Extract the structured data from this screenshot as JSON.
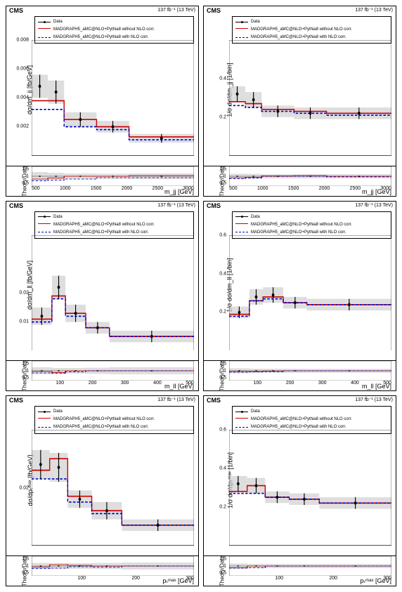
{
  "global": {
    "experiment": "CMS",
    "luminosity": "137 fb⁻¹ (13 TeV)",
    "legend_data": "Data",
    "legend_red": "MADGRAPH5_aMC@NLO+Pythia8 without NLO corr.",
    "legend_blue": "MADGRAPH5_aMC@NLO+Pythia8 with NLO corr.",
    "ratio_label": "Theory/Data",
    "colors": {
      "data": "#000000",
      "red": "#cc0000",
      "blue": "#0000cc",
      "band": "#d0d0d0",
      "band_hatch": "#b0b0b0"
    }
  },
  "panels": [
    {
      "id": "p00",
      "y_label": "dσ/dm_jj [fb/GeV]",
      "x_label": "m_jj [GeV]",
      "x_ticks": [
        "500",
        "1000",
        "1500",
        "2000",
        "2500",
        "3000"
      ],
      "y_ticks": [
        {
          "v": 1.0,
          "l": "0.008"
        },
        {
          "v": 0.75,
          "l": "0.006"
        },
        {
          "v": 0.5,
          "l": "0.004"
        },
        {
          "v": 0.25,
          "l": "0.002"
        }
      ],
      "x_bins": [
        500,
        750,
        1000,
        1500,
        2000,
        3000
      ],
      "data_points": [
        {
          "x": 625,
          "y": 0.0048,
          "ey": 0.0008
        },
        {
          "x": 875,
          "y": 0.0044,
          "ey": 0.0008
        },
        {
          "x": 1250,
          "y": 0.0025,
          "ey": 0.0005
        },
        {
          "x": 1750,
          "y": 0.002,
          "ey": 0.0004
        },
        {
          "x": 2500,
          "y": 0.0012,
          "ey": 0.0003
        }
      ],
      "red_steps": [
        0.0038,
        0.0038,
        0.0025,
        0.002,
        0.0013
      ],
      "blue_steps": [
        0.0032,
        0.0032,
        0.002,
        0.0018,
        0.0011
      ],
      "y_max": 0.008,
      "x_min": 500,
      "x_max": 3000,
      "ratio_ticks": [
        "0.5",
        "1",
        "1.5"
      ],
      "ratio_red": [
        0.8,
        0.87,
        1.0,
        1.0,
        1.05
      ],
      "ratio_blue": [
        0.68,
        0.73,
        0.8,
        0.9,
        0.9
      ],
      "ratio_band": [
        [
          0.7,
          1.3
        ],
        [
          0.75,
          1.25
        ],
        [
          0.8,
          1.2
        ],
        [
          0.82,
          1.18
        ],
        [
          0.8,
          1.2
        ]
      ]
    },
    {
      "id": "p01",
      "y_label": "1/σ dσ/dm_jj [1/bin]",
      "x_label": "m_jj [GeV]",
      "x_ticks": [
        "500",
        "1000",
        "1500",
        "2000",
        "2500",
        "3000"
      ],
      "y_ticks": [
        {
          "v": 0.666,
          "l": "0.4"
        },
        {
          "v": 0.333,
          "l": "0.2"
        }
      ],
      "x_bins": [
        500,
        750,
        1000,
        1500,
        2000,
        3000
      ],
      "data_points": [
        {
          "x": 625,
          "y": 0.32,
          "ey": 0.04
        },
        {
          "x": 875,
          "y": 0.29,
          "ey": 0.04
        },
        {
          "x": 1250,
          "y": 0.23,
          "ey": 0.03
        },
        {
          "x": 1750,
          "y": 0.22,
          "ey": 0.03
        },
        {
          "x": 2500,
          "y": 0.22,
          "ey": 0.03
        }
      ],
      "red_steps": [
        0.28,
        0.27,
        0.24,
        0.23,
        0.22
      ],
      "blue_steps": [
        0.26,
        0.25,
        0.23,
        0.22,
        0.21
      ],
      "y_max": 0.6,
      "x_min": 500,
      "x_max": 3000,
      "ratio_ticks": [
        "0.5",
        "1",
        "1.5"
      ],
      "ratio_red": [
        0.9,
        0.93,
        1.03,
        1.05,
        1.0
      ],
      "ratio_blue": [
        0.82,
        0.87,
        1.0,
        1.0,
        0.96
      ],
      "ratio_band": [
        [
          0.82,
          1.18
        ],
        [
          0.83,
          1.17
        ],
        [
          0.85,
          1.15
        ],
        [
          0.85,
          1.15
        ],
        [
          0.85,
          1.15
        ]
      ]
    },
    {
      "id": "p10",
      "y_label": "dσ/dm_ll [fb/GeV]",
      "x_label": "m_ll [GeV]",
      "x_ticks": [
        "",
        "100",
        "200",
        "300",
        "400",
        "500"
      ],
      "y_ticks": [
        {
          "v": 0.5,
          "l": "0.02"
        },
        {
          "v": 0.25,
          "l": "0.01"
        }
      ],
      "x_bins": [
        20,
        80,
        120,
        180,
        250,
        500
      ],
      "data_points": [
        {
          "x": 50,
          "y": 0.012,
          "ey": 0.003
        },
        {
          "x": 100,
          "y": 0.022,
          "ey": 0.004
        },
        {
          "x": 150,
          "y": 0.013,
          "ey": 0.003
        },
        {
          "x": 215,
          "y": 0.008,
          "ey": 0.002
        },
        {
          "x": 375,
          "y": 0.005,
          "ey": 0.002
        }
      ],
      "red_steps": [
        0.011,
        0.019,
        0.013,
        0.008,
        0.005
      ],
      "blue_steps": [
        0.01,
        0.018,
        0.012,
        0.008,
        0.005
      ],
      "y_max": 0.04,
      "x_min": 20,
      "x_max": 500,
      "ratio_ticks": [
        "0.5",
        "1",
        "1.5"
      ],
      "ratio_red": [
        0.95,
        0.87,
        1.0,
        1.0,
        1.0
      ],
      "ratio_blue": [
        0.85,
        0.82,
        0.93,
        1.0,
        1.0
      ],
      "ratio_band": [
        [
          0.75,
          1.25
        ],
        [
          0.8,
          1.2
        ],
        [
          0.8,
          1.2
        ],
        [
          0.78,
          1.22
        ],
        [
          0.75,
          1.25
        ]
      ]
    },
    {
      "id": "p11",
      "y_label": "1/σ dσ/dm_ll [1/bin]",
      "x_label": "m_ll [GeV]",
      "x_ticks": [
        "",
        "100",
        "200",
        "300",
        "400",
        "500"
      ],
      "y_ticks": [
        {
          "v": 1.0,
          "l": "0.6"
        },
        {
          "v": 0.666,
          "l": "0.4"
        },
        {
          "v": 0.333,
          "l": "0.2"
        }
      ],
      "x_bins": [
        20,
        80,
        120,
        180,
        250,
        500
      ],
      "data_points": [
        {
          "x": 50,
          "y": 0.2,
          "ey": 0.03
        },
        {
          "x": 100,
          "y": 0.28,
          "ey": 0.04
        },
        {
          "x": 150,
          "y": 0.29,
          "ey": 0.04
        },
        {
          "x": 215,
          "y": 0.25,
          "ey": 0.03
        },
        {
          "x": 375,
          "y": 0.24,
          "ey": 0.03
        }
      ],
      "red_steps": [
        0.19,
        0.26,
        0.28,
        0.25,
        0.24
      ],
      "blue_steps": [
        0.18,
        0.26,
        0.27,
        0.25,
        0.24
      ],
      "y_max": 0.6,
      "x_min": 20,
      "x_max": 500,
      "ratio_ticks": [
        "0.5",
        "1",
        "1.5"
      ],
      "ratio_red": [
        0.95,
        0.94,
        0.97,
        1.0,
        1.0
      ],
      "ratio_blue": [
        0.9,
        0.93,
        0.94,
        1.0,
        1.0
      ],
      "ratio_band": [
        [
          0.82,
          1.18
        ],
        [
          0.85,
          1.15
        ],
        [
          0.85,
          1.15
        ],
        [
          0.85,
          1.15
        ],
        [
          0.86,
          1.14
        ]
      ]
    },
    {
      "id": "p20",
      "y_label": "dσ/dpₜᵐᵃˣ [fb/GeV]",
      "x_label": "pₜᵐᵃˣ [GeV]",
      "x_ticks": [
        "",
        "100",
        "200",
        "300"
      ],
      "y_ticks": [
        {
          "v": 0.5,
          "l": "0.02"
        }
      ],
      "x_bins": [
        30,
        60,
        90,
        130,
        180,
        300
      ],
      "data_points": [
        {
          "x": 45,
          "y": 0.028,
          "ey": 0.005
        },
        {
          "x": 75,
          "y": 0.027,
          "ey": 0.005
        },
        {
          "x": 110,
          "y": 0.016,
          "ey": 0.003
        },
        {
          "x": 155,
          "y": 0.012,
          "ey": 0.003
        },
        {
          "x": 240,
          "y": 0.007,
          "ey": 0.002
        }
      ],
      "red_steps": [
        0.026,
        0.03,
        0.017,
        0.012,
        0.007
      ],
      "blue_steps": [
        0.023,
        0.023,
        0.015,
        0.011,
        0.007
      ],
      "y_max": 0.04,
      "x_min": 30,
      "x_max": 300,
      "ratio_ticks": [
        "0.5",
        "1",
        "1.5"
      ],
      "ratio_red": [
        0.93,
        1.1,
        1.05,
        1.0,
        1.0
      ],
      "ratio_blue": [
        0.82,
        0.85,
        0.95,
        0.92,
        1.0
      ],
      "ratio_band": [
        [
          0.78,
          1.22
        ],
        [
          0.8,
          1.2
        ],
        [
          0.8,
          1.2
        ],
        [
          0.78,
          1.22
        ],
        [
          0.75,
          1.25
        ]
      ]
    },
    {
      "id": "p21",
      "y_label": "1/σ dσ/dpₜᵐᵃˣ [1/bin]",
      "x_label": "pₜᵐᵃˣ [GeV]",
      "x_ticks": [
        "",
        "100",
        "200",
        "300"
      ],
      "y_ticks": [
        {
          "v": 1.0,
          "l": "0.6"
        },
        {
          "v": 0.666,
          "l": "0.4"
        },
        {
          "v": 0.333,
          "l": "0.2"
        }
      ],
      "x_bins": [
        30,
        60,
        90,
        130,
        180,
        300
      ],
      "data_points": [
        {
          "x": 45,
          "y": 0.32,
          "ey": 0.04
        },
        {
          "x": 75,
          "y": 0.31,
          "ey": 0.04
        },
        {
          "x": 110,
          "y": 0.25,
          "ey": 0.03
        },
        {
          "x": 155,
          "y": 0.24,
          "ey": 0.03
        },
        {
          "x": 240,
          "y": 0.22,
          "ey": 0.03
        }
      ],
      "red_steps": [
        0.28,
        0.31,
        0.25,
        0.24,
        0.22
      ],
      "blue_steps": [
        0.27,
        0.27,
        0.25,
        0.24,
        0.22
      ],
      "y_max": 0.6,
      "x_min": 30,
      "x_max": 300,
      "ratio_ticks": [
        "0.5",
        "1",
        "1.5"
      ],
      "ratio_red": [
        0.88,
        1.0,
        1.0,
        1.0,
        1.0
      ],
      "ratio_blue": [
        0.85,
        0.87,
        1.0,
        1.0,
        1.0
      ],
      "ratio_band": [
        [
          0.82,
          1.18
        ],
        [
          0.85,
          1.15
        ],
        [
          0.85,
          1.15
        ],
        [
          0.85,
          1.15
        ],
        [
          0.85,
          1.15
        ]
      ]
    }
  ]
}
